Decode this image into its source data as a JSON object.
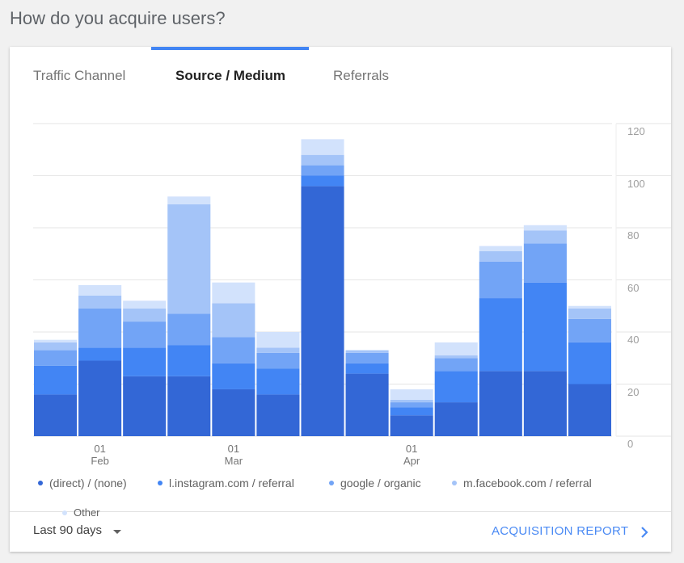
{
  "header": {
    "title": "How do you acquire users?"
  },
  "tabs": [
    "Traffic Channel",
    "Source / Medium",
    "Referrals"
  ],
  "active_tab": 1,
  "chart_data": {
    "type": "stacked_bar",
    "categories": [
      null,
      "01\nFeb",
      null,
      null,
      "01\nMar",
      null,
      null,
      null,
      "01\nApr",
      null,
      null,
      null,
      null
    ],
    "series": [
      {
        "name": "(direct) / (none)",
        "color": "#3367d6",
        "values": [
          16,
          29,
          23,
          23,
          18,
          16,
          96,
          24,
          8,
          13,
          25,
          25,
          20
        ]
      },
      {
        "name": "l.instagram.com / referral",
        "color": "#4285f4",
        "values": [
          11,
          5,
          11,
          12,
          10,
          10,
          4,
          4,
          3,
          12,
          28,
          34,
          16
        ]
      },
      {
        "name": "google / organic",
        "color": "#72a4f6",
        "values": [
          6,
          15,
          10,
          12,
          10,
          6,
          4,
          4,
          2,
          5,
          14,
          15,
          9
        ]
      },
      {
        "name": "m.facebook.com / referral",
        "color": "#a4c4f8",
        "values": [
          3,
          5,
          5,
          42,
          13,
          2,
          4,
          1,
          1,
          1,
          4,
          5,
          4
        ]
      },
      {
        "name": "Other",
        "color": "#d2e2fc",
        "values": [
          1,
          4,
          3,
          3,
          8,
          6,
          6,
          0,
          4,
          5,
          2,
          2,
          1
        ]
      }
    ],
    "ylim": [
      0,
      120
    ],
    "yticks": [
      0,
      20,
      40,
      60,
      80,
      100,
      120
    ],
    "grid": true,
    "y_axis_side": "right"
  },
  "footer": {
    "date_range": "Last 90 days",
    "link": "ACQUISITION REPORT"
  }
}
